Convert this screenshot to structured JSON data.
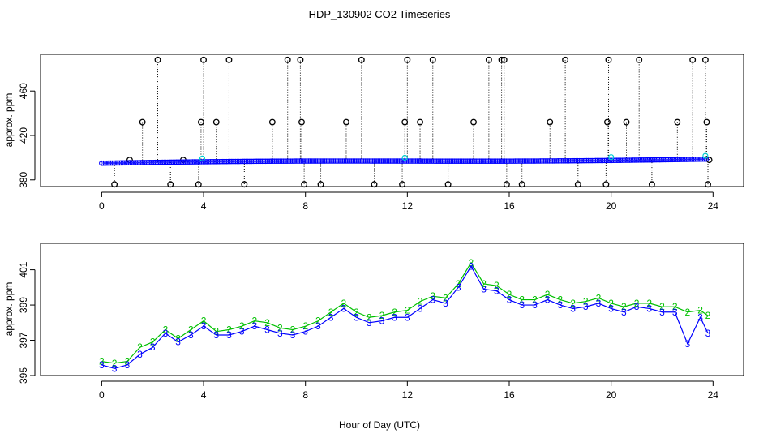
{
  "title": "HDP_130902  CO2 Timeseries",
  "x_label": "Hour of Day (UTC)",
  "colors": {
    "series1": "#000000",
    "series2": "#00c000",
    "series3": "#0000ff",
    "series4": "#00d0d0"
  },
  "chart_data": [
    {
      "type": "scatter",
      "ylabel": "approx. ppm",
      "xlim": [
        -2.4,
        25.2
      ],
      "ylim": [
        374,
        493
      ],
      "x_ticks": [
        "0",
        "4",
        "8",
        "12",
        "16",
        "20",
        "24"
      ],
      "y_ticks": [
        "380",
        "420",
        "460"
      ],
      "x_tick_values": [
        0,
        4,
        8,
        12,
        16,
        20,
        24
      ],
      "y_tick_values": [
        380,
        420,
        460
      ],
      "spike_x": [
        0.5,
        1.1,
        1.6,
        2.2,
        2.7,
        3.2,
        3.8,
        3.9,
        4.0,
        4.5,
        5.0,
        5.6,
        6.7,
        7.3,
        7.8,
        7.85,
        7.95,
        8.6,
        9.6,
        10.2,
        10.7,
        11.8,
        11.9,
        12.0,
        12.5,
        13.0,
        13.6,
        14.6,
        15.2,
        15.7,
        15.8,
        15.9,
        16.5,
        17.6,
        18.2,
        18.7,
        19.8,
        19.85,
        19.9,
        20.6,
        21.1,
        21.6,
        22.6,
        23.2,
        23.7,
        23.75,
        23.8,
        23.85
      ],
      "spike_y": [
        376,
        398,
        432,
        488,
        376,
        398,
        376,
        432,
        488,
        432,
        488,
        376,
        432,
        488,
        488,
        432,
        376,
        376,
        432,
        488,
        376,
        376,
        432,
        488,
        432,
        488,
        376,
        432,
        488,
        488,
        488,
        376,
        376,
        432,
        488,
        376,
        376,
        432,
        488,
        432,
        488,
        376,
        432,
        488,
        488,
        432,
        376,
        398
      ],
      "series": [
        {
          "name": "1",
          "marker": "o",
          "color": "#000000"
        },
        {
          "name": "3",
          "marker": "o",
          "color": "#0000ff"
        },
        {
          "name": "4",
          "marker": "o",
          "color": "#00d0d0"
        }
      ]
    },
    {
      "type": "line",
      "ylabel": "approx. ppm",
      "xlim": [
        -2.4,
        25.2
      ],
      "ylim": [
        395.0,
        402.5
      ],
      "x_ticks": [
        "0",
        "4",
        "8",
        "12",
        "16",
        "20",
        "24"
      ],
      "y_ticks": [
        "395",
        "397",
        "399",
        "401"
      ],
      "x_tick_values": [
        0,
        4,
        8,
        12,
        16,
        20,
        24
      ],
      "y_tick_values": [
        395,
        397,
        399,
        401
      ],
      "x": [
        0,
        0.5,
        1.0,
        1.5,
        2.0,
        2.5,
        3.0,
        3.5,
        4.0,
        4.5,
        5.0,
        5.5,
        6.0,
        6.5,
        7.0,
        7.5,
        8.0,
        8.5,
        9.0,
        9.5,
        10.0,
        10.5,
        11.0,
        11.5,
        12.0,
        12.5,
        13.0,
        13.5,
        14.0,
        14.5,
        15.0,
        15.5,
        16.0,
        16.5,
        17.0,
        17.5,
        18.0,
        18.5,
        19.0,
        19.5,
        20.0,
        20.5,
        21.0,
        21.5,
        22.0,
        22.5,
        23.0,
        23.5,
        23.8
      ],
      "series": [
        {
          "name": "2",
          "color": "#00c000",
          "values": [
            395.8,
            395.7,
            395.8,
            396.6,
            396.9,
            397.6,
            397.1,
            397.6,
            398.1,
            397.5,
            397.6,
            397.8,
            398.1,
            398.0,
            397.7,
            397.6,
            397.8,
            398.1,
            398.6,
            399.1,
            398.6,
            398.3,
            398.4,
            398.6,
            398.7,
            399.2,
            399.5,
            399.4,
            400.2,
            401.4,
            400.2,
            400.1,
            399.6,
            399.3,
            399.3,
            399.6,
            399.3,
            399.1,
            399.2,
            399.4,
            399.1,
            398.9,
            399.1,
            399.1,
            398.9,
            398.9,
            398.6,
            398.7,
            398.4
          ]
        },
        {
          "name": "3",
          "color": "#0000ff",
          "values": [
            395.6,
            395.4,
            395.6,
            396.2,
            396.6,
            397.4,
            396.9,
            397.3,
            397.8,
            397.3,
            397.3,
            397.5,
            397.8,
            397.6,
            397.4,
            397.3,
            397.5,
            397.8,
            398.3,
            398.8,
            398.3,
            398.0,
            398.1,
            398.3,
            398.3,
            398.8,
            399.3,
            399.1,
            400.0,
            401.2,
            399.9,
            399.8,
            399.3,
            399.0,
            399.0,
            399.3,
            399.0,
            398.8,
            398.9,
            399.1,
            398.8,
            398.6,
            398.9,
            398.8,
            398.6,
            398.6,
            396.8,
            398.3,
            397.4
          ]
        }
      ]
    }
  ]
}
